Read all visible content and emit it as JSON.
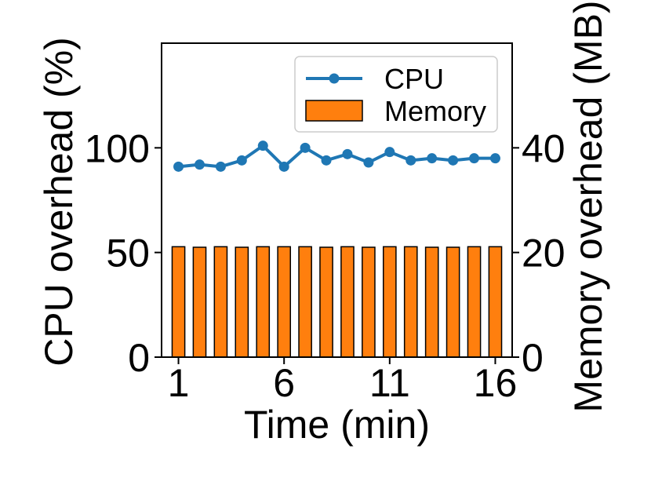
{
  "chart_data": {
    "type": "bar",
    "x": [
      1,
      2,
      3,
      4,
      5,
      6,
      7,
      8,
      9,
      10,
      11,
      12,
      13,
      14,
      15,
      16
    ],
    "series": [
      {
        "name": "CPU",
        "kind": "line",
        "axis": "left",
        "color": "#1f77b4",
        "values": [
          91,
          92,
          91,
          94,
          101,
          91,
          100,
          94,
          97,
          93,
          98,
          94,
          95,
          94,
          95,
          95
        ]
      },
      {
        "name": "Memory",
        "kind": "bar",
        "axis": "right",
        "color": "#ff7f0e",
        "values": [
          21.1,
          21.0,
          21.1,
          21.0,
          21.1,
          21.1,
          21.1,
          21.0,
          21.1,
          21.0,
          21.1,
          21.1,
          21.0,
          21.0,
          21.1,
          21.1
        ]
      }
    ],
    "xlabel": "Time (min)",
    "ylabel": "CPU overhead (%)",
    "y2label": "Memory overhead (MB)",
    "xticks": [
      1,
      6,
      11,
      16
    ],
    "yticks": [
      0,
      50,
      100
    ],
    "y2ticks": [
      0,
      20,
      40
    ],
    "xlim": [
      0.2,
      16.8
    ],
    "ylim": [
      0,
      150
    ],
    "y2lim": [
      0,
      60
    ],
    "legend_position": "upper-right",
    "grid": false
  }
}
